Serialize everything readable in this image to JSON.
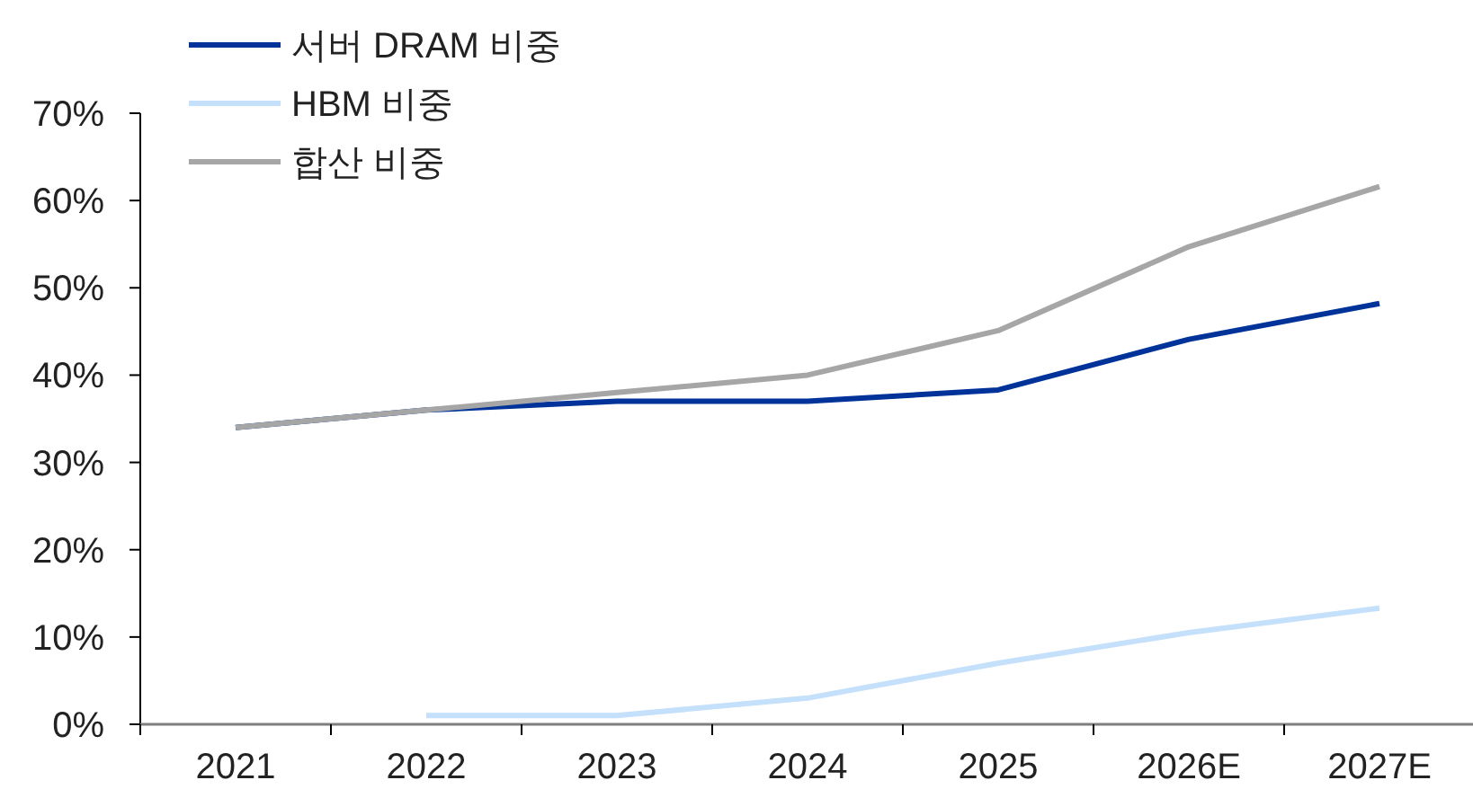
{
  "chart_data": {
    "type": "line",
    "categories": [
      "2021",
      "2022",
      "2023",
      "2024",
      "2025",
      "2026E",
      "2027E"
    ],
    "series": [
      {
        "name": "서버 DRAM 비중",
        "color": "#003399",
        "values": [
          34,
          36,
          37,
          37,
          38.3,
          44.1,
          48.2
        ]
      },
      {
        "name": "HBM 비중",
        "color": "#c5e0fb",
        "values": [
          null,
          1,
          1,
          3,
          7,
          10.5,
          13.3
        ]
      },
      {
        "name": "합산 비중",
        "color": "#a6a6a6",
        "values": [
          34,
          36,
          38,
          40,
          45.1,
          54.7,
          61.6
        ]
      }
    ],
    "ylim": [
      0,
      70
    ],
    "yticks": [
      {
        "value": 0,
        "label": "0%"
      },
      {
        "value": 10,
        "label": "10%"
      },
      {
        "value": 20,
        "label": "20%"
      },
      {
        "value": 30,
        "label": "30%"
      },
      {
        "value": 40,
        "label": "40%"
      },
      {
        "value": 50,
        "label": "50%"
      },
      {
        "value": 60,
        "label": "60%"
      },
      {
        "value": 70,
        "label": "70%"
      }
    ],
    "legend": "top left",
    "line_style": "solid"
  }
}
